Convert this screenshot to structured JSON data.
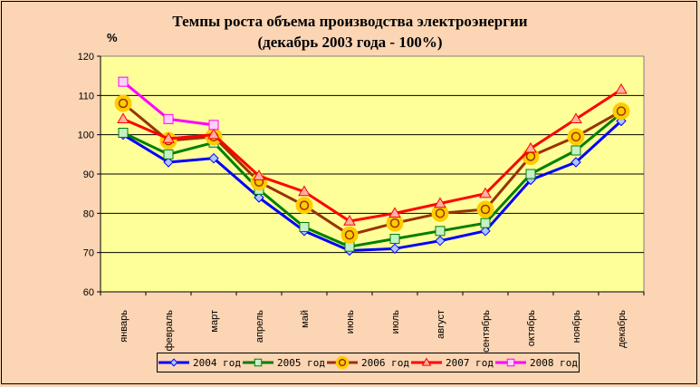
{
  "chart_data": {
    "type": "line",
    "title": "Темпы роста объема производства электроэнергии",
    "subtitle": "(декабрь 2003 года - 100%)",
    "ylabel": "%",
    "xlabel": "",
    "ylim": [
      60,
      120
    ],
    "yticks": [
      60,
      70,
      80,
      90,
      100,
      110,
      120
    ],
    "grid": true,
    "legend": "bottom",
    "categories": [
      "январь",
      "февраль",
      "март",
      "апрель",
      "май",
      "июнь",
      "июль",
      "август",
      "сентябрь",
      "октябрь",
      "ноябрь",
      "декабрь"
    ],
    "series": [
      {
        "name": "2004 год",
        "color": "#0000ff",
        "marker": "diamond",
        "values": [
          100,
          93,
          94,
          84,
          75.5,
          70.5,
          71,
          73,
          75.5,
          88.5,
          93,
          103.5
        ]
      },
      {
        "name": "2005 год",
        "color": "#008000",
        "marker": "square",
        "values": [
          100.5,
          95,
          98,
          86,
          76.5,
          71.5,
          73.5,
          75.5,
          77.5,
          90,
          96,
          105.5
        ]
      },
      {
        "name": "2006 год",
        "color": "#993300",
        "marker": "circle",
        "values": [
          108,
          98.5,
          99.5,
          88,
          82,
          74.5,
          77.5,
          80,
          81,
          94.5,
          99.5,
          106
        ]
      },
      {
        "name": "2007 год",
        "color": "#ff0000",
        "marker": "triangle",
        "values": [
          104,
          99,
          100,
          89.5,
          85.5,
          78,
          80,
          82.5,
          85,
          96.5,
          104,
          111.5
        ]
      },
      {
        "name": "2008 год",
        "color": "#ff00ff",
        "marker": "square",
        "values": [
          113.5,
          104,
          102.5,
          null,
          null,
          null,
          null,
          null,
          null,
          null,
          null,
          null
        ]
      }
    ],
    "colors": {
      "plot_background": "#ffff99",
      "page_background": "#fcd5b4"
    }
  }
}
